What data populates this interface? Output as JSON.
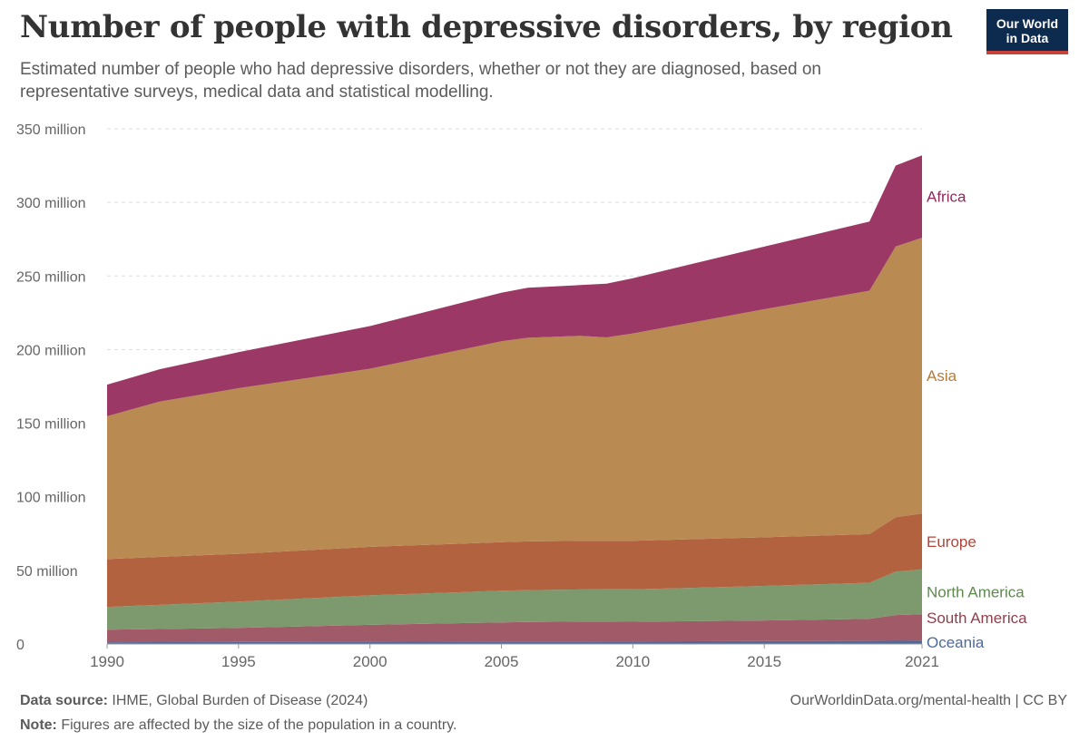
{
  "header": {
    "title": "Number of people with depressive disorders, by region",
    "subtitle": "Estimated number of people who had depressive disorders, whether or not they are diagnosed, based on representative surveys, medical data and statistical modelling.",
    "logo_line1": "Our World",
    "logo_line2": "in Data"
  },
  "footer": {
    "source_label": "Data source:",
    "source_text": "IHME, Global Burden of Disease (2024)",
    "note_label": "Note:",
    "note_text": "Figures are affected by the size of the population in a country.",
    "credit": "OurWorldinData.org/mental-health | CC BY"
  },
  "colors": {
    "Oceania": "#4c6a9c",
    "South America": "#a05a68",
    "North America": "#7d9a6e",
    "Europe": "#b3623f",
    "Asia": "#b98a52",
    "Africa": "#9c3865",
    "Oceania_label": "#4c6a9c",
    "South America_label": "#8f3f4c",
    "North America_label": "#5e8a4e",
    "Europe_label": "#b3453a",
    "Asia_label": "#b77a3a",
    "Africa_label": "#8e2b5c"
  },
  "chart_data": {
    "type": "area",
    "stacked": true,
    "x": [
      1990,
      1992,
      1995,
      2000,
      2005,
      2006,
      2008,
      2009,
      2010,
      2015,
      2019,
      2020,
      2021
    ],
    "xticks": [
      1990,
      1995,
      2000,
      2005,
      2010,
      2015,
      2021
    ],
    "xtick_labels": [
      "1990",
      "1995",
      "2000",
      "2005",
      "2010",
      "2015",
      "2021"
    ],
    "yticks": [
      0,
      50000000,
      100000000,
      150000000,
      200000000,
      250000000,
      300000000,
      350000000
    ],
    "ytick_labels": [
      "0",
      "50 million",
      "100 million",
      "150 million",
      "200 million",
      "250 million",
      "300 million",
      "350 million"
    ],
    "xlim": [
      1990,
      2021
    ],
    "ylim": [
      0,
      350000000
    ],
    "grid": "horizontal-dashed",
    "legend": "right-inline",
    "series": [
      {
        "name": "Oceania",
        "values": [
          1200000,
          1250000,
          1350000,
          1500000,
          1650000,
          1700000,
          1750000,
          1780000,
          1800000,
          1950000,
          2100000,
          2150000,
          2200000
        ]
      },
      {
        "name": "South America",
        "values": [
          8500000,
          8900000,
          9600000,
          11500000,
          13000000,
          13300000,
          13500000,
          13400000,
          13300000,
          14000000,
          15000000,
          17500000,
          18000000
        ]
      },
      {
        "name": "North America",
        "values": [
          15500000,
          16400000,
          17800000,
          20000000,
          21500000,
          21600000,
          21800000,
          21900000,
          22000000,
          23500000,
          24500000,
          29500000,
          30500000
        ]
      },
      {
        "name": "Europe",
        "values": [
          32500000,
          32600000,
          32500000,
          33000000,
          33000000,
          33100000,
          33000000,
          33000000,
          33000000,
          33000000,
          33000000,
          37000000,
          38000000
        ]
      },
      {
        "name": "Asia",
        "values": [
          97000000,
          105500000,
          112500000,
          121000000,
          136500000,
          138300000,
          139300000,
          138200000,
          140900000,
          155000000,
          165400000,
          183900000,
          187300000
        ]
      },
      {
        "name": "Africa",
        "values": [
          21500000,
          22000000,
          24500000,
          29000000,
          33000000,
          34000000,
          34500000,
          36500000,
          37500000,
          42500000,
          47000000,
          55000000,
          56000000
        ]
      }
    ]
  }
}
